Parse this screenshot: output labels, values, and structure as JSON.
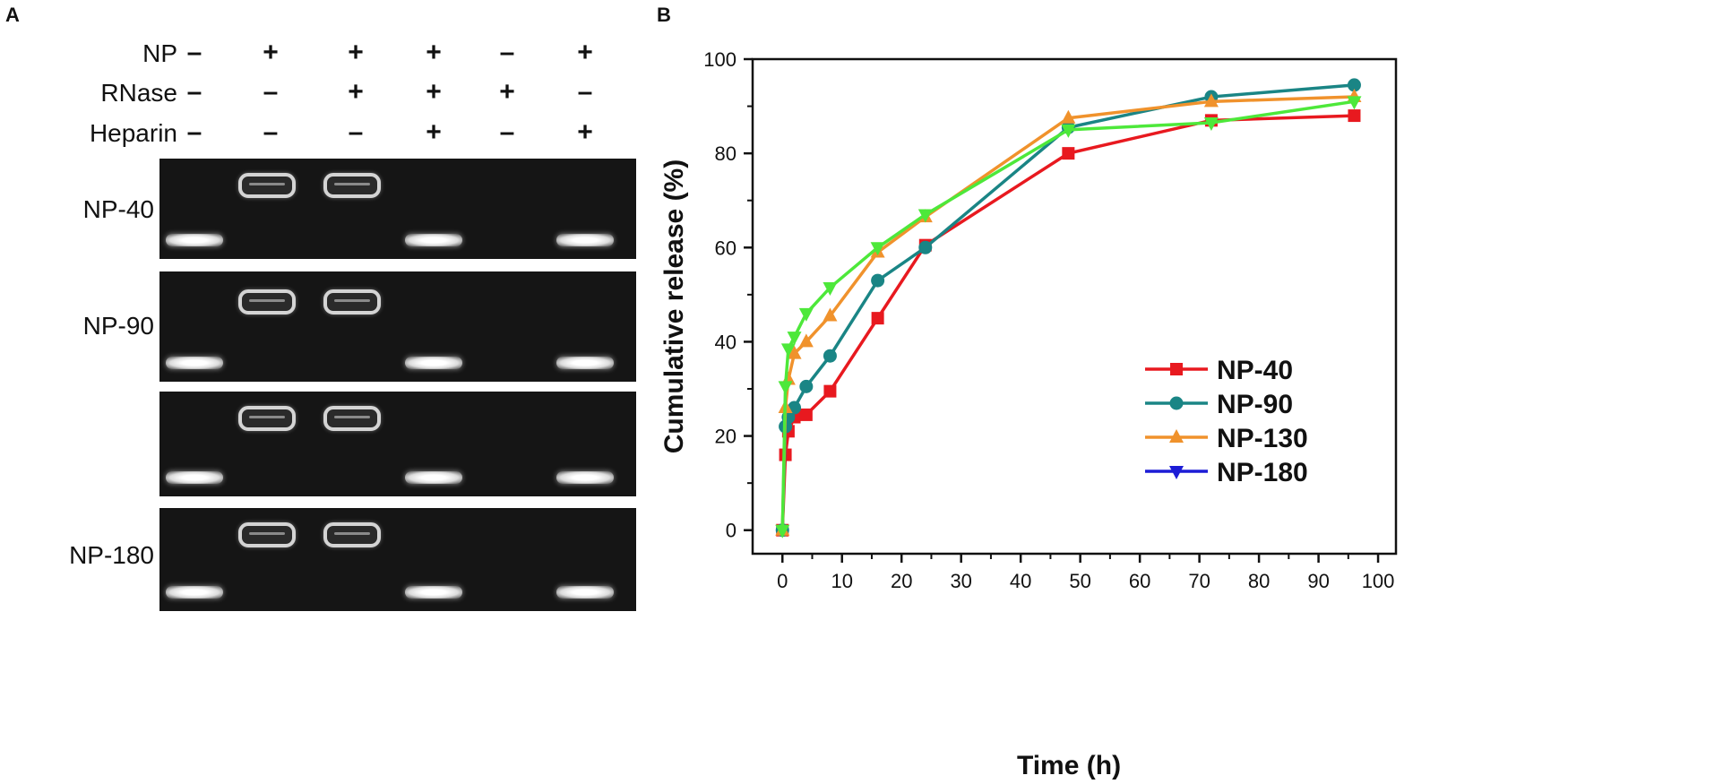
{
  "panel_a": {
    "letter": "A",
    "conditions": [
      {
        "label": "NP",
        "signs": [
          "–",
          "+",
          "+",
          "+",
          "–",
          "+"
        ]
      },
      {
        "label": "RNase",
        "signs": [
          "–",
          "–",
          "+",
          "+",
          "+",
          "–"
        ]
      },
      {
        "label": "Heparin",
        "signs": [
          "–",
          "–",
          "–",
          "+",
          "–",
          "+"
        ]
      }
    ],
    "gels": [
      {
        "name": "NP-40",
        "bands": [
          "low",
          "high",
          "high",
          "low",
          "none",
          "low"
        ]
      },
      {
        "name": "NP-90",
        "bands": [
          "low",
          "high",
          "high",
          "low",
          "none",
          "low"
        ]
      },
      {
        "name": "",
        "bands": [
          "low",
          "high",
          "high",
          "low",
          "none",
          "low"
        ]
      },
      {
        "name": "NP-180",
        "bands": [
          "low",
          "high",
          "high",
          "low",
          "none",
          "low"
        ]
      }
    ]
  },
  "panel_b": {
    "letter": "B"
  },
  "chart_data": {
    "type": "line",
    "title": "",
    "xlabel": "Time (h)",
    "ylabel": "Cumulative release (%)",
    "xlim": [
      -5,
      103
    ],
    "ylim": [
      -5,
      100
    ],
    "xticks": [
      0,
      10,
      20,
      30,
      40,
      50,
      60,
      70,
      80,
      90,
      100
    ],
    "yticks": [
      0,
      20,
      40,
      60,
      80,
      100
    ],
    "legend_position": "bottom-right",
    "series": [
      {
        "name": "NP-40",
        "color": "#e8191f",
        "marker": "square",
        "x": [
          0,
          0.5,
          1,
          2,
          4,
          8,
          16,
          24,
          48,
          72,
          96
        ],
        "y": [
          0,
          16,
          21,
          24,
          24.5,
          29.5,
          45,
          60.5,
          80,
          87,
          88
        ]
      },
      {
        "name": "NP-90",
        "color": "#1a8585",
        "marker": "circle",
        "x": [
          0,
          0.5,
          1,
          2,
          4,
          8,
          16,
          24,
          48,
          72,
          96
        ],
        "y": [
          0,
          22,
          24,
          26,
          30.5,
          37,
          53,
          60,
          85.5,
          92,
          94.5
        ]
      },
      {
        "name": "NP-130",
        "color": "#f0922c",
        "marker": "triangle-up",
        "x": [
          0,
          0.5,
          1,
          2,
          4,
          8,
          16,
          24,
          48,
          72,
          96
        ],
        "y": [
          0,
          26,
          32,
          37.5,
          40,
          45.5,
          59,
          66.5,
          87.5,
          91,
          92
        ]
      },
      {
        "name": "NP-180",
        "color": "#1c1cd6",
        "line_color": "#4de83a",
        "marker": "triangle-down",
        "x": [
          0,
          0.5,
          1,
          2,
          4,
          8,
          16,
          24,
          48,
          72,
          96
        ],
        "y": [
          0,
          30.5,
          38.5,
          41,
          46,
          51.5,
          60,
          67,
          85,
          86.5,
          91
        ]
      }
    ]
  }
}
